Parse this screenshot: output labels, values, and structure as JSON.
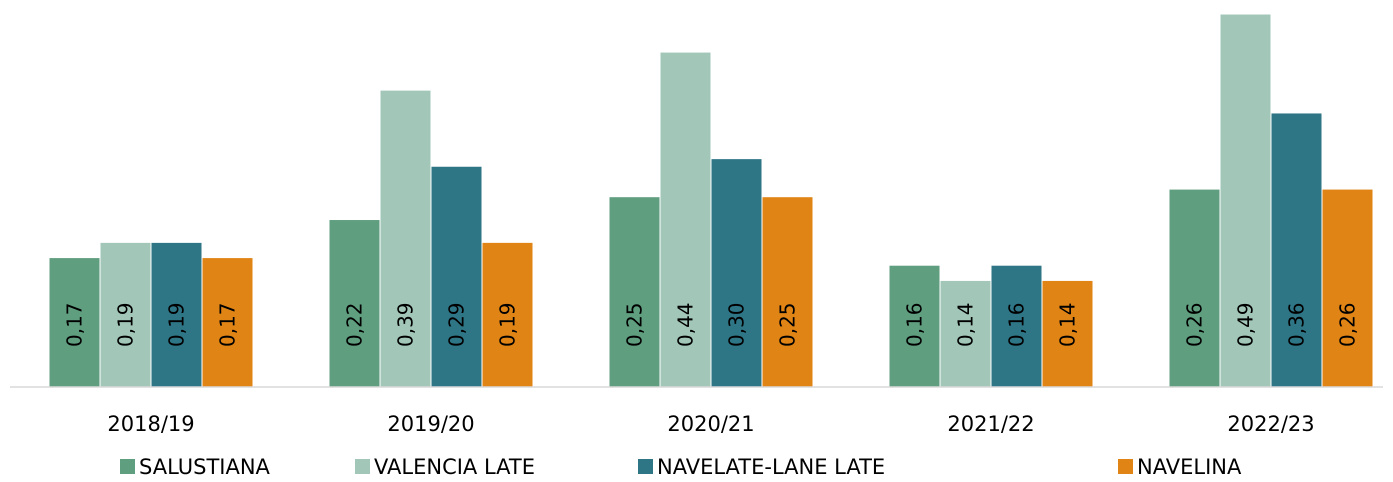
{
  "chart_data": {
    "type": "bar",
    "categories": [
      "2018/19",
      "2019/20",
      "2020/21",
      "2021/22",
      "2022/23"
    ],
    "series": [
      {
        "name": "SALUSTIANA",
        "color": "#5f9e7f",
        "values": [
          0.17,
          0.22,
          0.25,
          0.16,
          0.26
        ],
        "labels": [
          "0,17",
          "0,22",
          "0,25",
          "0,16",
          "0,26"
        ]
      },
      {
        "name": "VALENCIA LATE",
        "color": "#a2c7b9",
        "values": [
          0.19,
          0.39,
          0.44,
          0.14,
          0.49
        ],
        "labels": [
          "0,19",
          "0,39",
          "0,44",
          "0,14",
          "0,49"
        ]
      },
      {
        "name": "NAVELATE-LANE LATE",
        "color": "#2e7586",
        "values": [
          0.19,
          0.29,
          0.3,
          0.16,
          0.36
        ],
        "labels": [
          "0,19",
          "0,29",
          "0,30",
          "0,16",
          "0,36"
        ]
      },
      {
        "name": "NAVELINA",
        "color": "#e08416",
        "values": [
          0.17,
          0.19,
          0.25,
          0.14,
          0.26
        ],
        "labels": [
          "0,17",
          "0,19",
          "0,25",
          "0,14",
          "0,26"
        ]
      }
    ],
    "title": "",
    "xlabel": "",
    "ylabel": "",
    "ylim": [
      0,
      0.49
    ],
    "grid": false,
    "legend_position": "bottom",
    "data_labels_rotated": true
  }
}
